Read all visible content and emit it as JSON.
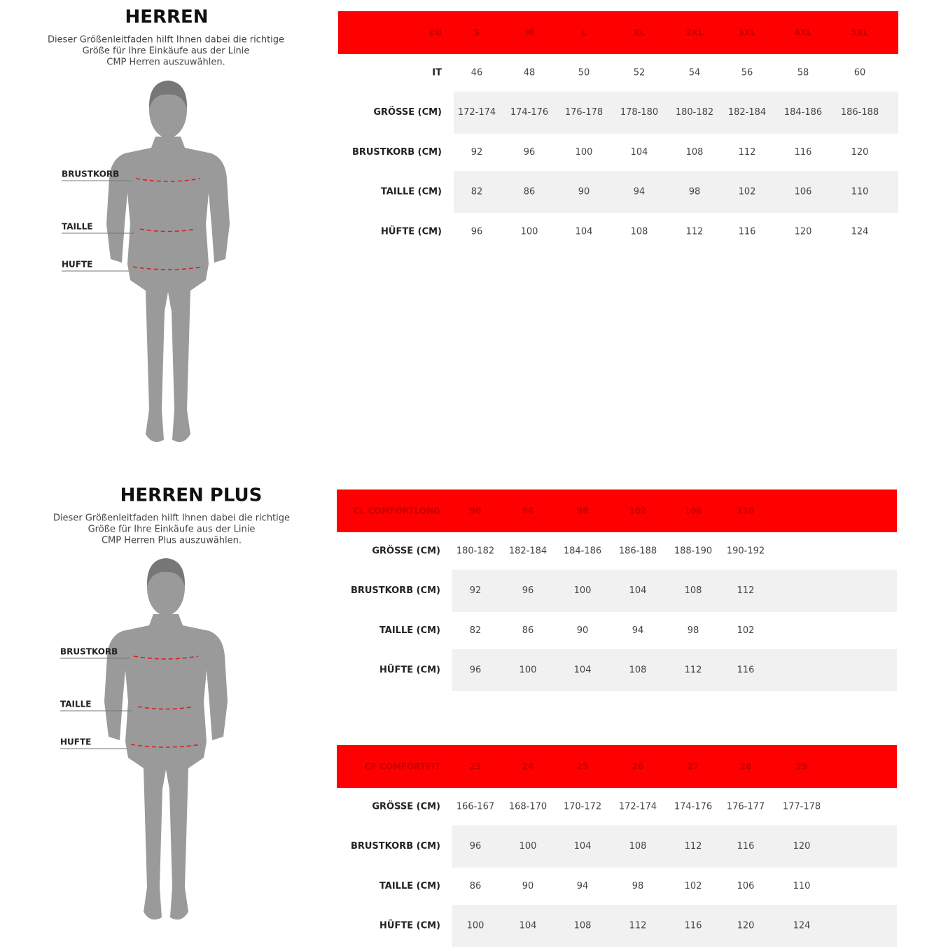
{
  "sections": [
    {
      "title": "HERREN",
      "description": [
        "Dieser Größenleitfaden hilft Ihnen dabei die richtige",
        "Größe für Ihre Einkäufe aus der Linie",
        "CMP Herren auszuwählen."
      ],
      "figure_labels": [
        "BRUSTKORB",
        "TAILLE",
        "HUFTE"
      ],
      "tables": [
        {
          "header": [
            "EU",
            "S",
            "M",
            "L",
            "XL",
            "2XL",
            "3XL",
            "4XL",
            "5XL"
          ],
          "rows": [
            {
              "label": "IT",
              "values": [
                "46",
                "48",
                "50",
                "52",
                "54",
                "56",
                "58",
                "60"
              ]
            },
            {
              "label": "GRÖSSE (CM)",
              "values": [
                "172-174",
                "174-176",
                "176-178",
                "178-180",
                "180-182",
                "182-184",
                "184-186",
                "186-188"
              ]
            },
            {
              "label": "BRUSTKORB (CM)",
              "values": [
                "92",
                "96",
                "100",
                "104",
                "108",
                "112",
                "116",
                "120"
              ]
            },
            {
              "label": "TAILLE (CM)",
              "values": [
                "82",
                "86",
                "90",
                "94",
                "98",
                "102",
                "106",
                "110"
              ]
            },
            {
              "label": "HÜFTE (CM)",
              "values": [
                "96",
                "100",
                "104",
                "108",
                "112",
                "116",
                "120",
                "124"
              ]
            }
          ]
        }
      ]
    },
    {
      "title": "HERREN PLUS",
      "description": [
        "Dieser Größenleitfaden hilft Ihnen dabei die richtige",
        "Größe für Ihre Einkäufe aus der Linie",
        "CMP Herren Plus auszuwählen."
      ],
      "figure_labels": [
        "BRUSTKORB",
        "TAILLE",
        "HUFTE"
      ],
      "tables": [
        {
          "header": [
            "CL COMFORTLONG",
            "90",
            "94",
            "98",
            "102",
            "106",
            "110"
          ],
          "rows": [
            {
              "label": "GRÖSSE (CM)",
              "values": [
                "180-182",
                "182-184",
                "184-186",
                "186-188",
                "188-190",
                "190-192"
              ]
            },
            {
              "label": "BRUSTKORB (CM)",
              "values": [
                "92",
                "96",
                "100",
                "104",
                "108",
                "112"
              ]
            },
            {
              "label": "TAILLE (CM)",
              "values": [
                "82",
                "86",
                "90",
                "94",
                "98",
                "102"
              ]
            },
            {
              "label": "HÜFTE (CM)",
              "values": [
                "96",
                "100",
                "104",
                "108",
                "112",
                "116"
              ]
            }
          ]
        },
        {
          "header": [
            "CF COMFORTFIT",
            "23",
            "24",
            "25",
            "26",
            "27",
            "28",
            "29"
          ],
          "rows": [
            {
              "label": "GRÖSSE (CM)",
              "values": [
                "166-167",
                "168-170",
                "170-172",
                "172-174",
                "174-176",
                "176-177",
                "177-178"
              ]
            },
            {
              "label": "BRUSTKORB (CM)",
              "values": [
                "96",
                "100",
                "104",
                "108",
                "112",
                "116",
                "120"
              ]
            },
            {
              "label": "TAILLE (CM)",
              "values": [
                "86",
                "90",
                "94",
                "98",
                "102",
                "106",
                "110"
              ]
            },
            {
              "label": "HÜFTE (CM)",
              "values": [
                "100",
                "104",
                "108",
                "112",
                "116",
                "120",
                "124"
              ]
            }
          ]
        }
      ]
    }
  ]
}
